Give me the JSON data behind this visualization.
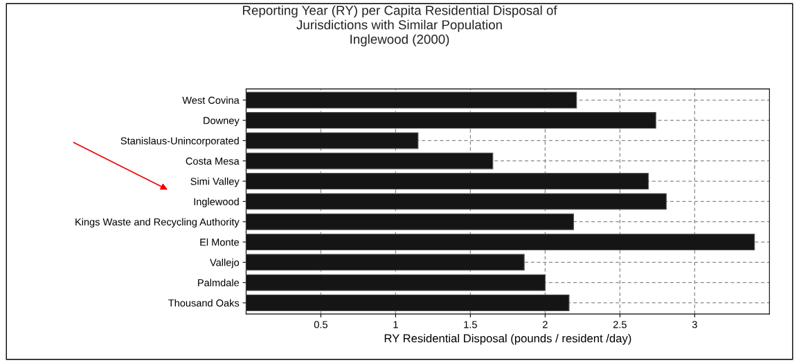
{
  "chart_data": {
    "type": "bar",
    "orientation": "horizontal",
    "title": "Reporting Year (RY) per Capita Residential Disposal of\nJurisdictions with Similar Population\nInglewood (2000)",
    "xlabel": "RY Residential Disposal (pounds / resident /day)",
    "categories": [
      "West Covina",
      "Downey",
      "Stanislaus-Unincorporated",
      "Costa Mesa",
      "Simi Valley",
      "Inglewood",
      "Kings Waste and Recycling Authority",
      "El Monte",
      "Vallejo",
      "Palmdale",
      "Thousand Oaks"
    ],
    "values": [
      2.21,
      2.74,
      1.15,
      1.65,
      2.69,
      2.81,
      2.19,
      3.4,
      1.86,
      2.0,
      2.16
    ],
    "color": "#151515",
    "xlim": [
      0,
      3.5
    ],
    "xticks": [
      0.5,
      1,
      1.5,
      2,
      2.5,
      3
    ],
    "grid": true
  }
}
